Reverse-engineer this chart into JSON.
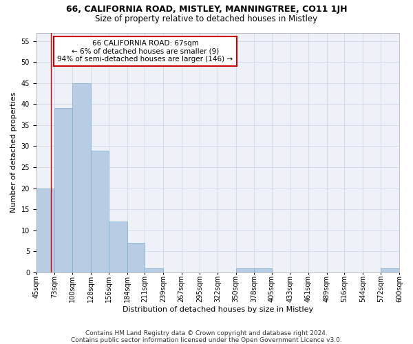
{
  "title": "66, CALIFORNIA ROAD, MISTLEY, MANNINGTREE, CO11 1JH",
  "subtitle": "Size of property relative to detached houses in Mistley",
  "xlabel": "Distribution of detached houses by size in Mistley",
  "ylabel": "Number of detached properties",
  "bin_edges": [
    45,
    73,
    100,
    128,
    156,
    184,
    211,
    239,
    267,
    295,
    322,
    350,
    378,
    405,
    433,
    461,
    489,
    516,
    544,
    572,
    600
  ],
  "bin_labels": [
    "45sqm",
    "73sqm",
    "100sqm",
    "128sqm",
    "156sqm",
    "184sqm",
    "211sqm",
    "239sqm",
    "267sqm",
    "295sqm",
    "322sqm",
    "350sqm",
    "378sqm",
    "405sqm",
    "433sqm",
    "461sqm",
    "489sqm",
    "516sqm",
    "544sqm",
    "572sqm",
    "600sqm"
  ],
  "counts": [
    20,
    39,
    45,
    29,
    12,
    7,
    1,
    0,
    0,
    0,
    0,
    1,
    1,
    0,
    0,
    0,
    0,
    0,
    0,
    1
  ],
  "bar_color": "#b8cce4",
  "bar_edge_color": "#7bafd4",
  "property_line_x": 67,
  "annotation_line1": "66 CALIFORNIA ROAD: 67sqm",
  "annotation_line2": "← 6% of detached houses are smaller (9)",
  "annotation_line3": "94% of semi-detached houses are larger (146) →",
  "annotation_box_color": "#ffffff",
  "annotation_box_edge_color": "#cc0000",
  "vline_color": "#cc0000",
  "ylim": [
    0,
    57
  ],
  "yticks": [
    0,
    5,
    10,
    15,
    20,
    25,
    30,
    35,
    40,
    45,
    50,
    55
  ],
  "background_color": "#eef2f8",
  "footer_line1": "Contains HM Land Registry data © Crown copyright and database right 2024.",
  "footer_line2": "Contains public sector information licensed under the Open Government Licence v3.0.",
  "title_fontsize": 9,
  "subtitle_fontsize": 8.5,
  "xlabel_fontsize": 8,
  "ylabel_fontsize": 8,
  "tick_fontsize": 7,
  "annotation_fontsize": 7.5,
  "footer_fontsize": 6.5
}
